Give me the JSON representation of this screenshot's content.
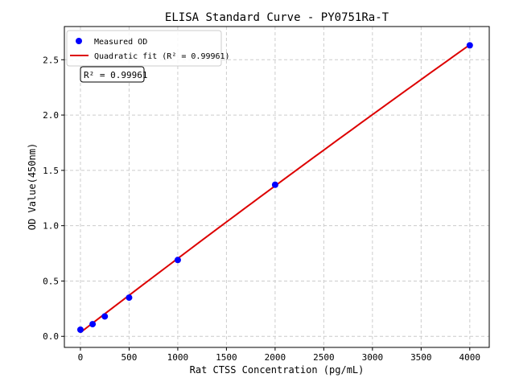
{
  "chart_data": {
    "type": "scatter",
    "title": "ELISA Standard Curve - PY0751Ra-T",
    "xlabel": "Rat CTSS Concentration (pg/mL)",
    "ylabel": "OD Value(450nm)",
    "xlim": [
      -165,
      4200
    ],
    "ylim": [
      -0.1,
      2.8
    ],
    "xticks": [
      0,
      500,
      1000,
      1500,
      2000,
      2500,
      3000,
      3500,
      4000
    ],
    "yticks": [
      0.0,
      0.5,
      1.0,
      1.5,
      2.0,
      2.5
    ],
    "grid": true,
    "legend_position": "top-left",
    "series": [
      {
        "name": "Measured OD",
        "kind": "points",
        "color": "#0000ff",
        "x": [
          0,
          125,
          250,
          500,
          1000,
          2000,
          4000
        ],
        "y": [
          0.06,
          0.11,
          0.18,
          0.35,
          0.69,
          1.37,
          2.63
        ]
      },
      {
        "name": "Quadratic fit (R² = 0.99961)",
        "kind": "line",
        "color": "#dd0000",
        "coefficients": {
          "a": -6.25e-09,
          "b": 0.000675,
          "c": 0.035
        }
      }
    ],
    "annotation": "R² = 0.99961"
  }
}
